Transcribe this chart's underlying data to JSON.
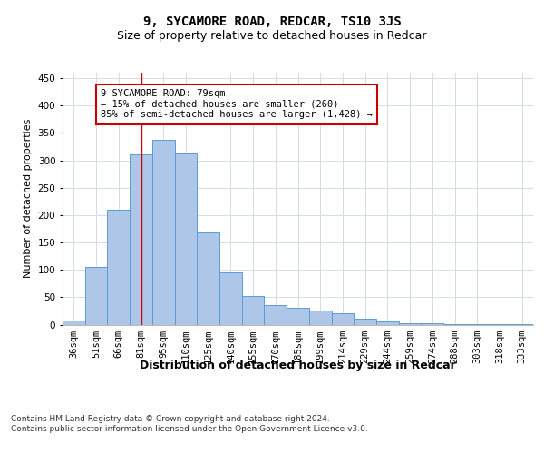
{
  "title": "9, SYCAMORE ROAD, REDCAR, TS10 3JS",
  "subtitle": "Size of property relative to detached houses in Redcar",
  "xlabel": "Distribution of detached houses by size in Redcar",
  "ylabel": "Number of detached properties",
  "categories": [
    "36sqm",
    "51sqm",
    "66sqm",
    "81sqm",
    "95sqm",
    "110sqm",
    "125sqm",
    "140sqm",
    "155sqm",
    "170sqm",
    "185sqm",
    "199sqm",
    "214sqm",
    "229sqm",
    "244sqm",
    "259sqm",
    "274sqm",
    "288sqm",
    "303sqm",
    "318sqm",
    "333sqm"
  ],
  "values": [
    7,
    105,
    210,
    310,
    338,
    313,
    168,
    95,
    52,
    35,
    30,
    25,
    20,
    10,
    5,
    3,
    2,
    1,
    1,
    0.5,
    0.5
  ],
  "bar_color": "#aec6e8",
  "bar_edge_color": "#5b9bd5",
  "annotation_line_x": "81sqm",
  "annotation_line_color": "#cc0000",
  "annotation_box_text": "9 SYCAMORE ROAD: 79sqm\n← 15% of detached houses are smaller (260)\n85% of semi-detached houses are larger (1,428) →",
  "annotation_box_color": "#cc0000",
  "ylim": [
    0,
    460
  ],
  "yticks": [
    0,
    50,
    100,
    150,
    200,
    250,
    300,
    350,
    400,
    450
  ],
  "background_color": "#ffffff",
  "grid_color": "#d0dce8",
  "footer_text": "Contains HM Land Registry data © Crown copyright and database right 2024.\nContains public sector information licensed under the Open Government Licence v3.0.",
  "title_fontsize": 10,
  "subtitle_fontsize": 9,
  "xlabel_fontsize": 9,
  "ylabel_fontsize": 8,
  "tick_fontsize": 7.5,
  "annotation_fontsize": 7.5,
  "footer_fontsize": 6.5
}
